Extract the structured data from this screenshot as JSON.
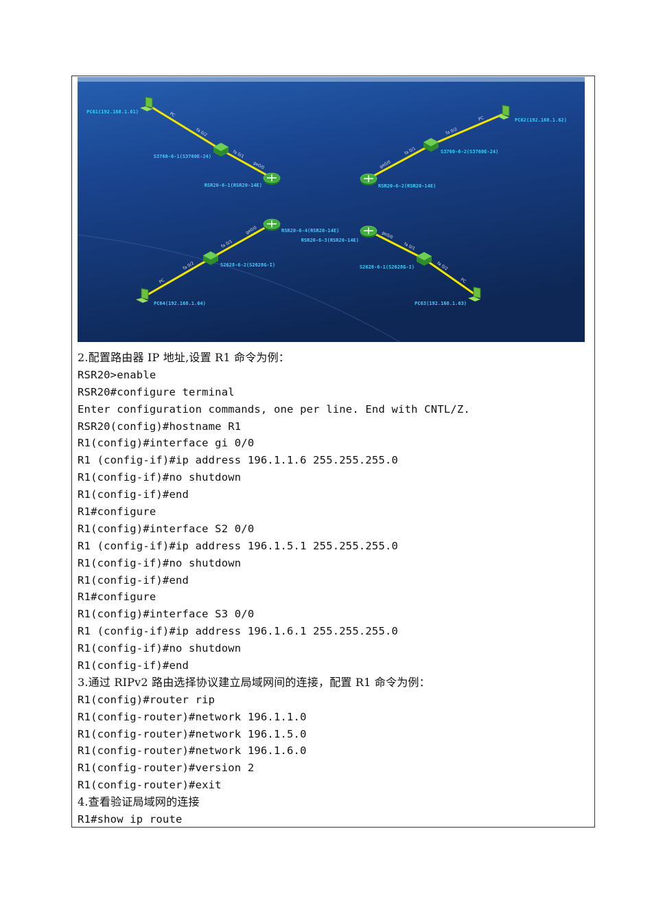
{
  "diagram": {
    "nodes": [
      {
        "id": "pc61",
        "type": "pc",
        "label": "PC61(192.168.1.61)"
      },
      {
        "id": "s1",
        "type": "switch3760",
        "label": "S3760-6-1(S3760E-24)"
      },
      {
        "id": "r1",
        "type": "router",
        "label": "RSR20-6-1(RSR20-14E)"
      },
      {
        "id": "pc62",
        "type": "pc",
        "label": "PC62(192.168.1.62)"
      },
      {
        "id": "s2",
        "type": "switch3760",
        "label": "S3760-6-2(S3760E-24)"
      },
      {
        "id": "r2",
        "type": "router",
        "label": "RSR20-6-2(RSR20-14E)"
      },
      {
        "id": "r4",
        "type": "router",
        "label": "RSR20-6-4(RSR20-14E)"
      },
      {
        "id": "s4",
        "type": "switch2628",
        "label": "S2628-6-2(S2628G-I)"
      },
      {
        "id": "pc64",
        "type": "pc",
        "label": "PC64(192.168.1.64)"
      },
      {
        "id": "r3",
        "type": "router",
        "label": "RSR20-6-3(RSR20-14E)"
      },
      {
        "id": "s3",
        "type": "switch2628",
        "label": "S2628-6-1(S2628G-I)"
      },
      {
        "id": "pc63",
        "type": "pc",
        "label": "PC63(192.168.1.63)"
      }
    ],
    "links": [
      {
        "a": "pc61",
        "b": "s1",
        "pa": "PC",
        "pb": "fa 0/2"
      },
      {
        "a": "s1",
        "b": "r1",
        "pa": "fa 0/1",
        "pb": "ge0/0"
      },
      {
        "a": "pc62",
        "b": "s2",
        "pa": "PC",
        "pb": "fa 0/2"
      },
      {
        "a": "s2",
        "b": "r2",
        "pa": "fa 0/1",
        "pb": "ge0/0"
      },
      {
        "a": "r4",
        "b": "s4",
        "pa": "ge0/0",
        "pb": "fa 0/1"
      },
      {
        "a": "s4",
        "b": "pc64",
        "pa": "fa 0/2",
        "pb": "PC"
      },
      {
        "a": "r3",
        "b": "s3",
        "pa": "ge0/0",
        "pb": "fa 0/1"
      },
      {
        "a": "s3",
        "b": "pc63",
        "pa": "fa 0/2",
        "pb": "PC"
      }
    ],
    "colors": {
      "link": "#f2e600",
      "label": "#3ad0ff",
      "device": "#3fae3a"
    }
  },
  "lines": [
    {
      "text": "2.配置路由器 IP 地址,设置 R1 命令为例：",
      "cn": true
    },
    {
      "text": "RSR20>enable"
    },
    {
      "text": "RSR20#configure terminal"
    },
    {
      "text": "Enter configuration commands, one per line. End with CNTL/Z."
    },
    {
      "text": "RSR20(config)#hostname R1"
    },
    {
      "text": "R1(config)#interface gi 0/0"
    },
    {
      "text": "R1 (config-if)#ip address 196.1.1.6 255.255.255.0"
    },
    {
      "text": "R1(config-if)#no shutdown"
    },
    {
      "text": "R1(config-if)#end"
    },
    {
      "text": "R1#configure"
    },
    {
      "text": "R1(config)#interface S2 0/0"
    },
    {
      "text": "R1 (config-if)#ip address 196.1.5.1 255.255.255.0"
    },
    {
      "text": "R1(config-if)#no shutdown"
    },
    {
      "text": "R1(config-if)#end"
    },
    {
      "text": "R1#configure"
    },
    {
      "text": "R1(config)#interface S3 0/0"
    },
    {
      "text": "R1 (config-if)#ip address 196.1.6.1 255.255.255.0"
    },
    {
      "text": "R1(config-if)#no shutdown"
    },
    {
      "text": "R1(config-if)#end"
    },
    {
      "text": "3.通过 RIPv2 路由选择协议建立局域网间的连接，配置 R1 命令为例：",
      "cn": true
    },
    {
      "text": "R1(config)#router rip"
    },
    {
      "text": "R1(config-router)#network 196.1.1.0"
    },
    {
      "text": "R1(config-router)#network 196.1.5.0"
    },
    {
      "text": "R1(config-router)#network 196.1.6.0"
    },
    {
      "text": "R1(config-router)#version 2"
    },
    {
      "text": "R1(config-router)#exit"
    },
    {
      "text": "4.查看验证局域网的连接",
      "cn": true
    },
    {
      "text": "R1#show ip route"
    }
  ]
}
